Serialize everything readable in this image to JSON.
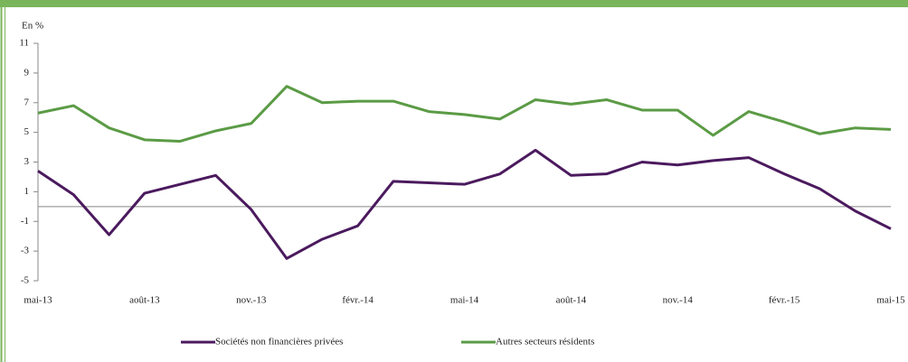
{
  "chart_data": {
    "type": "line",
    "y_unit_label": "En %",
    "categories": [
      "mai-13",
      null,
      null,
      "août-13",
      null,
      null,
      "nov.-13",
      null,
      null,
      "févr.-14",
      null,
      null,
      "mai-14",
      null,
      null,
      "août-14",
      null,
      null,
      "nov.-14",
      null,
      null,
      "févr.-15",
      null,
      null,
      "mai-15"
    ],
    "series": [
      {
        "name": "Sociétés non financières privées",
        "color": "#4b1a5e",
        "values": [
          2.4,
          0.8,
          -1.9,
          0.9,
          1.5,
          2.1,
          -0.2,
          -3.5,
          -2.2,
          -1.3,
          1.7,
          1.6,
          1.5,
          2.2,
          3.8,
          2.1,
          2.2,
          3.0,
          2.8,
          3.1,
          3.3,
          2.2,
          1.2,
          -0.3,
          -1.5
        ]
      },
      {
        "name": "Autres secteurs résidents",
        "color": "#5b9b45",
        "values": [
          6.3,
          6.8,
          5.3,
          4.5,
          4.4,
          5.1,
          5.6,
          8.1,
          7.0,
          7.1,
          7.1,
          6.4,
          6.2,
          5.9,
          7.2,
          6.9,
          7.2,
          6.5,
          6.5,
          4.8,
          6.4,
          5.7,
          4.9,
          5.3,
          5.2
        ]
      }
    ],
    "ylim": [
      -5,
      11
    ],
    "yticks": [
      11,
      9,
      7,
      5,
      3,
      1,
      -1,
      -3,
      -5
    ]
  }
}
